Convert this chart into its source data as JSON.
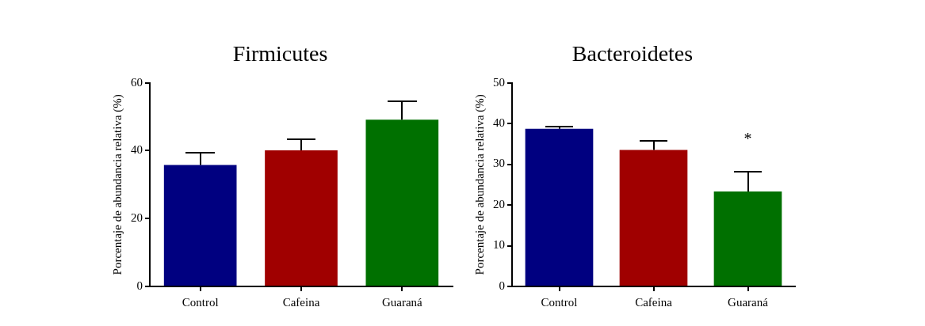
{
  "chart_data": [
    {
      "type": "bar",
      "title": "Firmicutes",
      "ylabel": "Porcentaje de abundancia relativa (%)",
      "categories": [
        "Control",
        "Cafeina",
        "Guaraná"
      ],
      "values": [
        35.8,
        40.1,
        49.1
      ],
      "colors": [
        "#000080",
        "#a00000",
        "#007000"
      ],
      "errors": [
        [
          35.8,
          39.4
        ],
        [
          40.1,
          43.3
        ],
        [
          49.1,
          54.6
        ]
      ],
      "ylim": [
        0,
        60
      ],
      "yticks": [
        0,
        20,
        40,
        60
      ],
      "grid": false,
      "legend": false
    },
    {
      "type": "bar",
      "title": "Bacteroidetes",
      "ylabel": "Porcentaje de abundancia relativa (%)",
      "categories": [
        "Control",
        "Cafeina",
        "Guaraná"
      ],
      "values": [
        38.7,
        33.5,
        23.3
      ],
      "colors": [
        "#000080",
        "#a00000",
        "#007000"
      ],
      "errors": [
        [
          38.7,
          39.3
        ],
        [
          33.5,
          35.7
        ],
        [
          23.3,
          28.2
        ]
      ],
      "ylim": [
        0,
        50
      ],
      "yticks": [
        0,
        10,
        20,
        30,
        40,
        50
      ],
      "grid": false,
      "legend": false,
      "annotations": [
        "*"
      ]
    }
  ]
}
